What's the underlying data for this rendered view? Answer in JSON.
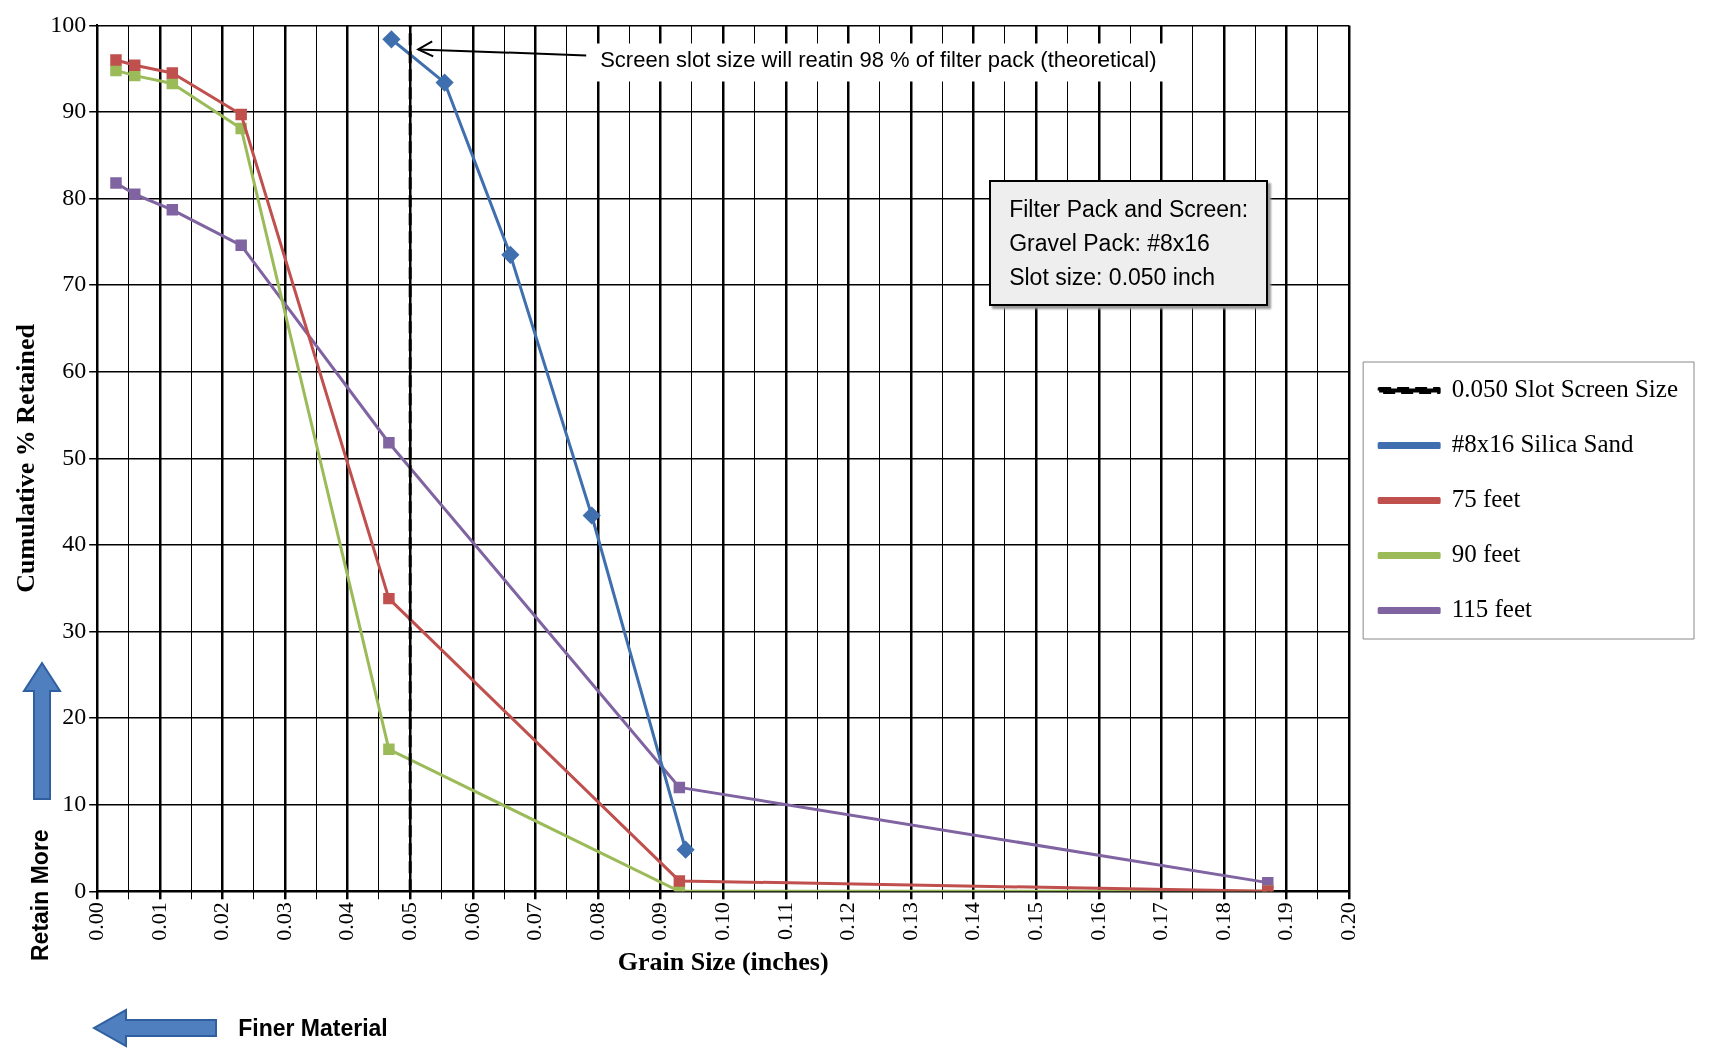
{
  "chart_data": {
    "type": "line",
    "xlabel": "Grain Size (inches)",
    "ylabel": "Cumulative % Retained",
    "xlim": [
      0,
      0.2
    ],
    "ylim": [
      0,
      100
    ],
    "xticks": [
      {
        "value": 0,
        "label": "0.00"
      },
      {
        "value": 0.01,
        "label": "0.01"
      },
      {
        "value": 0.02,
        "label": "0.02"
      },
      {
        "value": 0.03,
        "label": "0.03"
      },
      {
        "value": 0.04,
        "label": "0.04"
      },
      {
        "value": 0.05,
        "label": "0.05"
      },
      {
        "value": 0.06,
        "label": "0.06"
      },
      {
        "value": 0.07,
        "label": "0.07"
      },
      {
        "value": 0.08,
        "label": "0.08"
      },
      {
        "value": 0.09,
        "label": "0.09"
      },
      {
        "value": 0.1,
        "label": "0.10"
      },
      {
        "value": 0.11,
        "label": "0.11"
      },
      {
        "value": 0.12,
        "label": "0.12"
      },
      {
        "value": 0.13,
        "label": "0.13"
      },
      {
        "value": 0.14,
        "label": "0.14"
      },
      {
        "value": 0.15,
        "label": "0.15"
      },
      {
        "value": 0.16,
        "label": "0.16"
      },
      {
        "value": 0.17,
        "label": "0.17"
      },
      {
        "value": 0.18,
        "label": "0.18"
      },
      {
        "value": 0.19,
        "label": "0.19"
      },
      {
        "value": 0.2,
        "label": "0.20"
      },
      {
        "value": 0.005,
        "label": null
      },
      {
        "value": 0.015,
        "label": null
      },
      {
        "value": 0.025,
        "label": null
      },
      {
        "value": 0.035,
        "label": null
      },
      {
        "value": 0.045,
        "label": null
      },
      {
        "value": 0.055,
        "label": null
      },
      {
        "value": 0.065,
        "label": null
      },
      {
        "value": 0.075,
        "label": null
      },
      {
        "value": 0.085,
        "label": null
      },
      {
        "value": 0.095,
        "label": null
      },
      {
        "value": 0.105,
        "label": null
      },
      {
        "value": 0.115,
        "label": null
      },
      {
        "value": 0.125,
        "label": null
      },
      {
        "value": 0.135,
        "label": null
      },
      {
        "value": 0.145,
        "label": null
      },
      {
        "value": 0.155,
        "label": null
      },
      {
        "value": 0.165,
        "label": null
      },
      {
        "value": 0.175,
        "label": null
      },
      {
        "value": 0.185,
        "label": null
      },
      {
        "value": 0.195,
        "label": null
      }
    ],
    "yticks": [
      0,
      10,
      20,
      30,
      40,
      50,
      60,
      70,
      80,
      90,
      100
    ],
    "grid": true,
    "legend": "right",
    "line_style": "solid",
    "series": [
      {
        "name": "0.050 Slot Screen Size",
        "color": "#000000",
        "marker": "none",
        "line_style": "dashed",
        "x": [
          0.05,
          0.05
        ],
        "values": [
          0,
          100
        ]
      },
      {
        "name": "#8x16 Silica Sand",
        "color": "#3f6fae",
        "marker": "diamond",
        "x": [
          0.047,
          0.0555,
          0.066,
          0.079,
          0.094
        ],
        "values": [
          98.4,
          93.4,
          73.5,
          43.4,
          4.8
        ]
      },
      {
        "name": "75 feet",
        "color": "#c0504d",
        "marker": "square",
        "x": [
          0.003,
          0.006,
          0.012,
          0.023,
          0.0466,
          0.093,
          0.187
        ],
        "values": [
          96.0,
          95.4,
          94.5,
          89.7,
          33.8,
          1.2,
          0
        ]
      },
      {
        "name": "90 feet",
        "color": "#9bbb59",
        "marker": "square",
        "x": [
          0.003,
          0.006,
          0.012,
          0.023,
          0.0466,
          0.093,
          0.187
        ],
        "values": [
          94.8,
          94.2,
          93.3,
          88.1,
          16.4,
          0,
          0
        ]
      },
      {
        "name": "115 feet",
        "color": "#8064a2",
        "marker": "square",
        "x": [
          0.003,
          0.006,
          0.012,
          0.023,
          0.0466,
          0.093,
          0.187
        ],
        "values": [
          81.8,
          80.5,
          78.7,
          74.6,
          51.8,
          12.0,
          1.0
        ]
      }
    ],
    "annotations": [
      "Screen slot size will reatin 98 % of filter pack (theoretical)",
      "Filter Pack and Screen:\nGravel Pack: #8x16\nSlot size: 0.050 inch",
      "Retain More",
      "Finer Material"
    ]
  }
}
